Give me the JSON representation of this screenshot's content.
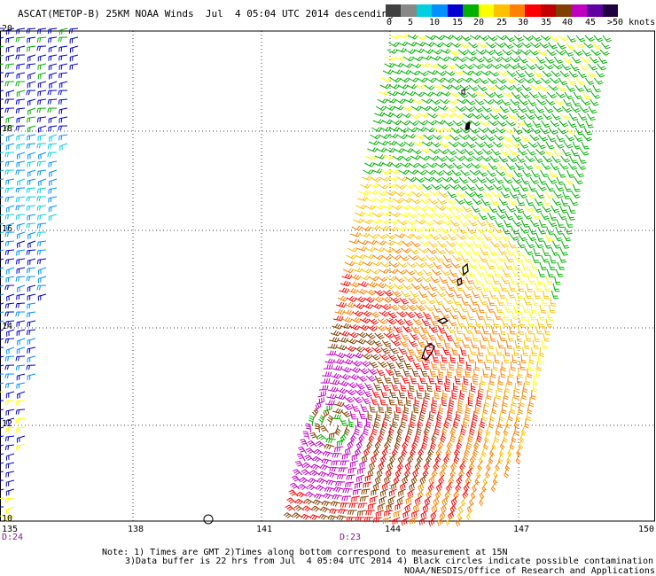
{
  "title": "ASCAT(METOP-B) 25KM NOAA Winds  Jul  4 05:04 UTC 2014 descending",
  "legend": {
    "colors": [
      "#404040",
      "#888888",
      "#00d0e0",
      "#0090ff",
      "#0000d0",
      "#00b000",
      "#ffff00",
      "#ffc000",
      "#ff8000",
      "#ff0000",
      "#c00000",
      "#804000",
      "#c000c0",
      "#6000a0",
      "#200040"
    ],
    "labels": [
      "0",
      "5",
      "10",
      "15",
      "20",
      "25",
      "30",
      "35",
      "40",
      "45",
      ">50 knots"
    ]
  },
  "axes": {
    "lat_labels": [
      "20",
      "18",
      "16",
      "14",
      "12",
      "10"
    ],
    "lon_labels": [
      "135",
      "138",
      "141",
      "144",
      "147",
      "150"
    ]
  },
  "time_labels": [
    "D:24",
    "D:23"
  ],
  "notes": {
    "line1": "Note: 1) Times are GMT 2)Times along bottom correspond to measurement at 15N",
    "line2": "3)Data buffer is 22 hrs from Jul  4 05:04 UTC 2014 4) Black circles indicate possible contamination",
    "credit": "NOAA/NESDIS/Office of Research and Applications"
  },
  "palette": {
    "grid": "#444444",
    "coast": "#000000"
  }
}
